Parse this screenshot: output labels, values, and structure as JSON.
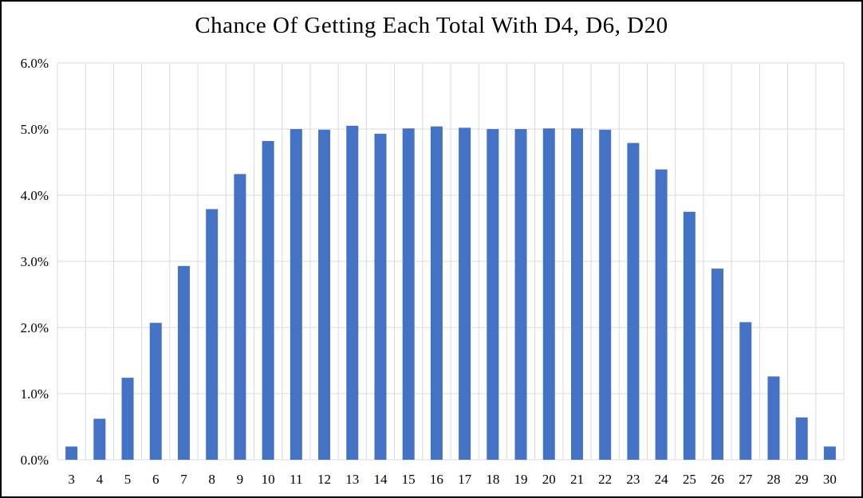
{
  "chart_data": {
    "type": "bar",
    "title": "Chance Of Getting Each Total With D4, D6, D20",
    "xlabel": "",
    "ylabel": "",
    "categories": [
      "3",
      "4",
      "5",
      "6",
      "7",
      "8",
      "9",
      "10",
      "11",
      "12",
      "13",
      "14",
      "15",
      "16",
      "17",
      "18",
      "19",
      "20",
      "21",
      "22",
      "23",
      "24",
      "25",
      "26",
      "27",
      "28",
      "29",
      "30"
    ],
    "values": [
      0.2,
      0.62,
      1.24,
      2.07,
      2.93,
      3.79,
      4.32,
      4.82,
      5.0,
      4.99,
      5.05,
      4.93,
      5.01,
      5.04,
      5.02,
      5.0,
      5.0,
      5.01,
      5.01,
      4.99,
      4.79,
      4.39,
      3.75,
      2.89,
      2.08,
      1.26,
      0.64,
      0.2
    ],
    "ylim": [
      0,
      6
    ],
    "yticks": [
      "0.0%",
      "1.0%",
      "2.0%",
      "3.0%",
      "4.0%",
      "5.0%",
      "6.0%"
    ],
    "y_format": "percent",
    "grid": true,
    "legend": "none",
    "colors": {
      "bar": "#4472C4",
      "grid": "#D9D9D9",
      "text": "#000000"
    }
  }
}
